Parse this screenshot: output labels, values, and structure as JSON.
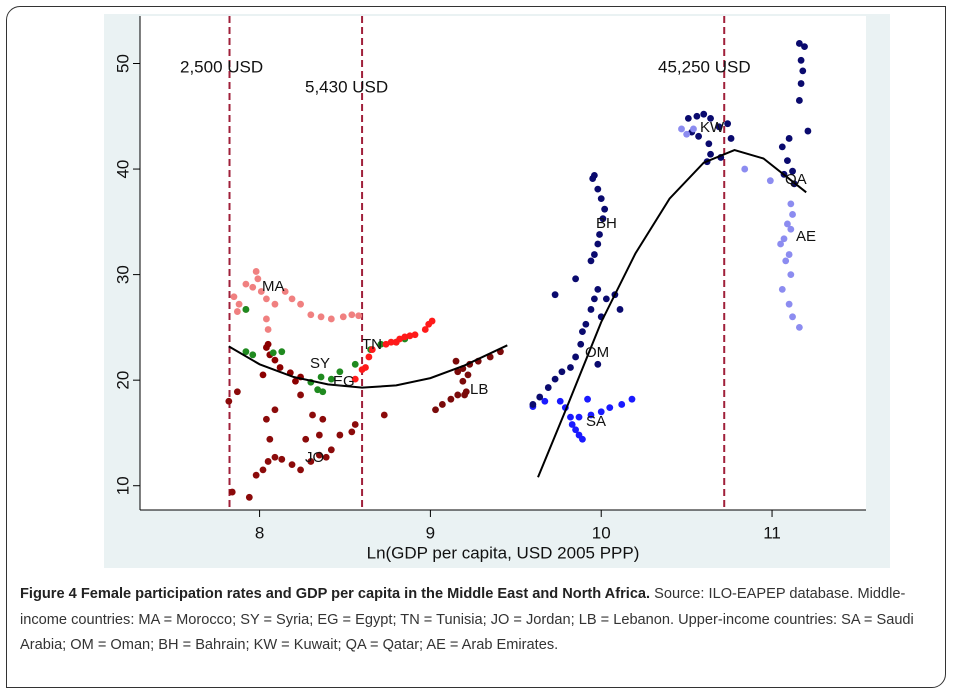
{
  "chart_data": {
    "type": "scatter",
    "x_label": "Ln(GDP per capita, USD 2005 PPP)",
    "xlim": [
      7.3,
      11.55
    ],
    "ylim": [
      7.7,
      54.5
    ],
    "xticks": [
      8,
      9,
      10,
      11
    ],
    "yticks": [
      10,
      20,
      30,
      40,
      50
    ],
    "vlines": [
      {
        "value": 7.824,
        "label": "2,500 USD"
      },
      {
        "value": 8.6,
        "label": "5,430 USD"
      },
      {
        "value": 10.72,
        "label": "45,250 USD"
      }
    ],
    "vline_color": "#a0203a",
    "series": [
      {
        "name": "MA",
        "color": "#f08080",
        "x": [
          7.85,
          7.88,
          7.92,
          7.92,
          7.96,
          7.98,
          7.99,
          8.01,
          8.04,
          7.87,
          8.04,
          8.05,
          8.09,
          8.15,
          8.19,
          8.24,
          8.3,
          8.36,
          8.42,
          8.49,
          8.54,
          8.58
        ],
        "values": [
          27.9,
          27.2,
          26.7,
          29.1,
          28.8,
          30.3,
          29.6,
          28.4,
          27.7,
          26.5,
          25.8,
          24.8,
          27.2,
          28.4,
          27.7,
          27.2,
          26.2,
          26.0,
          25.8,
          26.0,
          26.2,
          26.1
        ]
      },
      {
        "name": "SY",
        "color": "#8b0000",
        "x": [
          8.04,
          8.06,
          8.09,
          8.12,
          8.18,
          8.21,
          8.24,
          8.05,
          8.02
        ],
        "values": [
          23.1,
          22.4,
          21.9,
          21.2,
          20.7,
          19.9,
          20.3,
          23.4,
          20.5
        ]
      },
      {
        "name": "EG",
        "color": "#1f8a1f",
        "x": [
          7.92,
          7.96,
          8.08,
          8.13,
          7.92,
          8.3,
          8.36,
          8.42,
          8.34,
          8.47,
          8.56,
          8.65,
          8.71,
          8.8,
          8.85,
          8.37
        ],
        "values": [
          22.7,
          22.4,
          22.6,
          22.7,
          26.7,
          19.8,
          20.3,
          20.1,
          19.1,
          20.8,
          21.5,
          22.9,
          23.4,
          23.6,
          23.9,
          18.9
        ]
      },
      {
        "name": "TN",
        "color": "#ff1a1a",
        "x": [
          8.56,
          8.6,
          8.64,
          8.66,
          8.74,
          8.8,
          8.85,
          8.91,
          8.97,
          9.01,
          8.99,
          8.88,
          8.82,
          8.62,
          8.77
        ],
        "values": [
          20.1,
          21.0,
          22.2,
          22.9,
          23.4,
          23.6,
          24.1,
          24.3,
          24.8,
          25.6,
          25.3,
          24.2,
          23.9,
          21.2,
          23.6
        ]
      },
      {
        "name": "JO",
        "color": "#8b0a0a",
        "x": [
          7.84,
          7.94,
          7.98,
          8.02,
          8.05,
          8.09,
          8.13,
          8.19,
          8.24,
          8.3,
          8.35,
          8.39,
          8.42,
          8.27,
          8.35,
          8.31,
          8.37,
          8.06,
          8.04,
          8.09,
          7.82,
          7.87,
          8.24,
          8.47,
          8.54,
          8.56,
          8.73
        ],
        "values": [
          9.4,
          8.9,
          11.0,
          11.5,
          12.3,
          12.7,
          12.5,
          12.0,
          11.5,
          12.3,
          12.9,
          12.7,
          13.4,
          14.4,
          14.8,
          16.7,
          16.3,
          14.4,
          16.3,
          17.2,
          18.0,
          18.9,
          18.6,
          14.8,
          15.1,
          15.8,
          16.7
        ]
      },
      {
        "name": "LB",
        "color": "#7a0a0a",
        "x": [
          9.03,
          9.07,
          9.12,
          9.16,
          9.21,
          9.19,
          9.16,
          9.15,
          9.19,
          9.23,
          9.28,
          9.35,
          9.41,
          9.22,
          9.2
        ],
        "values": [
          17.2,
          17.7,
          18.2,
          18.6,
          18.9,
          19.9,
          20.8,
          21.8,
          21.1,
          21.5,
          21.8,
          22.2,
          22.7,
          20.5,
          18.6
        ]
      },
      {
        "name": "SA",
        "color": "#1a1aff",
        "x": [
          9.6,
          9.67,
          9.76,
          9.79,
          9.82,
          9.83,
          9.85,
          9.87,
          9.89,
          9.87,
          9.94,
          10.0,
          10.05,
          10.12,
          10.18,
          9.92
        ],
        "values": [
          17.5,
          18.0,
          18.0,
          17.4,
          16.5,
          15.8,
          15.3,
          14.8,
          14.4,
          16.5,
          16.7,
          17.0,
          17.4,
          17.7,
          18.2,
          18.2
        ]
      },
      {
        "name": "OM",
        "color": "#0a0a6e",
        "x": [
          9.6,
          9.64,
          9.69,
          9.73,
          9.77,
          9.82,
          9.85,
          9.88,
          9.89,
          9.91,
          9.94,
          9.96,
          9.98,
          10.03,
          10.08,
          10.11,
          10.0,
          9.85,
          9.73,
          9.98
        ],
        "values": [
          17.7,
          18.4,
          19.3,
          20.1,
          20.8,
          21.2,
          22.2,
          23.4,
          24.6,
          25.3,
          26.7,
          27.7,
          28.6,
          27.7,
          28.1,
          26.7,
          26.0,
          29.6,
          28.1,
          21.5
        ]
      },
      {
        "name": "BH",
        "color": "#0a0a6e",
        "x": [
          9.94,
          9.96,
          9.98,
          9.99,
          10.01,
          10.02,
          10.0,
          9.98,
          9.96,
          9.95
        ],
        "values": [
          31.3,
          31.9,
          32.9,
          33.8,
          35.3,
          36.2,
          37.2,
          38.1,
          39.4,
          39.1
        ]
      },
      {
        "name": "KW",
        "color": "#0a0a6e",
        "x": [
          10.51,
          10.56,
          10.6,
          10.64,
          10.69,
          10.74,
          10.76,
          10.63,
          10.64,
          10.57,
          10.53,
          10.7,
          10.62
        ],
        "values": [
          44.8,
          45.0,
          45.2,
          44.8,
          44.0,
          44.3,
          42.9,
          42.4,
          41.4,
          43.1,
          43.5,
          41.1,
          40.7
        ]
      },
      {
        "name": "QA",
        "color": "#0a0a6e",
        "x": [
          11.16,
          11.19,
          11.17,
          11.18,
          11.17,
          11.16,
          11.1,
          11.09,
          11.12,
          11.07,
          11.13,
          11.21,
          11.06
        ],
        "values": [
          51.9,
          51.6,
          50.3,
          49.3,
          48.1,
          46.5,
          42.9,
          40.8,
          39.8,
          39.5,
          38.6,
          43.6,
          42.1
        ]
      },
      {
        "name": "AE",
        "color": "#8c8cf0",
        "x": [
          10.47,
          10.5,
          10.54,
          10.84,
          10.99,
          11.11,
          11.12,
          11.09,
          11.07,
          11.05,
          11.1,
          11.08,
          11.11,
          11.06,
          11.1,
          11.12,
          11.16,
          11.11
        ],
        "values": [
          43.8,
          43.3,
          43.8,
          40.0,
          38.9,
          36.7,
          35.7,
          34.8,
          33.4,
          32.9,
          31.9,
          31.3,
          30.0,
          28.6,
          27.2,
          26.0,
          25.0,
          34.3
        ]
      }
    ],
    "fit_lines": [
      {
        "color": "#000000",
        "x": [
          7.82,
          8.0,
          8.2,
          8.4,
          8.6,
          8.8,
          9.0,
          9.2,
          9.45
        ],
        "values": [
          23.2,
          21.5,
          20.3,
          19.6,
          19.3,
          19.5,
          20.2,
          21.4,
          23.3
        ]
      },
      {
        "color": "#000000",
        "x": [
          9.63,
          9.8,
          10.0,
          10.2,
          10.4,
          10.6,
          10.78,
          10.95,
          11.2
        ],
        "values": [
          10.8,
          17.5,
          25.5,
          32.0,
          37.2,
          40.6,
          41.8,
          41.0,
          37.8
        ]
      }
    ]
  },
  "caption": {
    "title": "Figure 4 Female participation rates and GDP per capita in the Middle East and North Africa.",
    "text": "Source: ILO-EAPEP database. Middle-income countries: MA = Morocco; SY = Syria; EG = Egypt; TN = Tunisia; JO = Jordan; LB = Lebanon. Upper-income countries: SA = Saudi Arabia; OM = Oman; BH = Bahrain; KW = Kuwait; QA = Qatar; AE = Arab Emirates."
  }
}
